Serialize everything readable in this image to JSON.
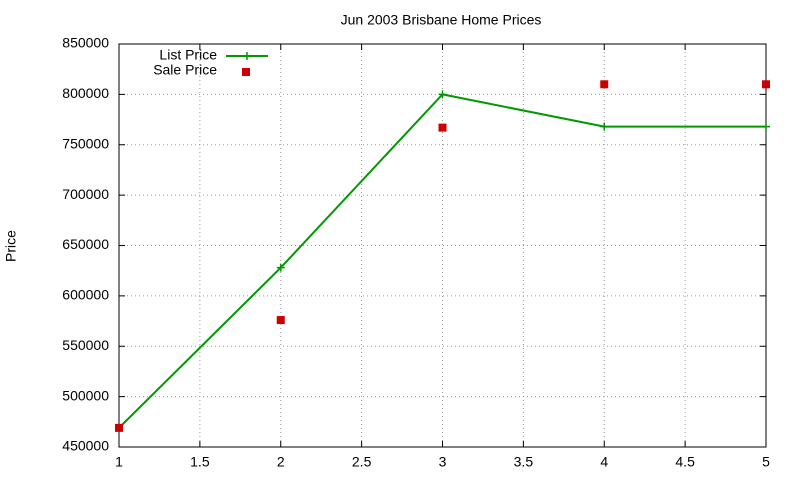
{
  "chart_data": {
    "type": "line",
    "title": "Jun 2003 Brisbane Home Prices",
    "y_label": "Price",
    "x": [
      1,
      2,
      3,
      4,
      5
    ],
    "series": [
      {
        "name": "List Price",
        "color": "#009900",
        "style": "linespoints",
        "values": [
          469000,
          628000,
          800000,
          768000,
          768000
        ]
      },
      {
        "name": "Sale Price",
        "color": "#cc0000",
        "style": "points",
        "values": [
          469000,
          576000,
          767000,
          810000,
          810000
        ]
      }
    ],
    "xlim": [
      1,
      5
    ],
    "xticks": [
      1,
      1.5,
      2,
      2.5,
      3,
      3.5,
      4,
      4.5,
      5
    ],
    "ylim": [
      450000,
      850000
    ],
    "yticks": [
      450000,
      500000,
      550000,
      600000,
      650000,
      700000,
      750000,
      800000,
      850000
    ],
    "grid": true,
    "legend": "top-left"
  }
}
